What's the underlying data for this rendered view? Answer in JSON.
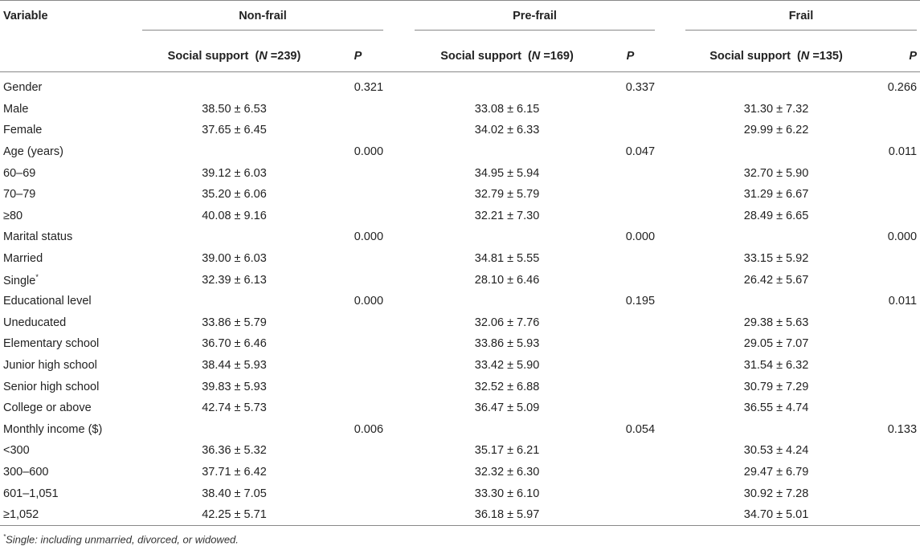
{
  "header": {
    "variable": "Variable",
    "groups": [
      {
        "name": "Non-frail",
        "ss_label": "Social support",
        "n_label": "N",
        "n_value": "=239",
        "p_label": "P"
      },
      {
        "name": "Pre-frail",
        "ss_label": "Social support",
        "n_label": "N",
        "n_value": "=169",
        "p_label": "P"
      },
      {
        "name": "Frail",
        "ss_label": "Social support",
        "n_label": "N",
        "n_value": "=135",
        "p_label": "P"
      }
    ]
  },
  "rows": [
    {
      "label": "Gender",
      "v": [
        "",
        "0.321",
        "",
        "0.337",
        "",
        "0.266"
      ]
    },
    {
      "label": "Male",
      "v": [
        "38.50 ± 6.53",
        "",
        "33.08 ± 6.15",
        "",
        "31.30 ± 7.32",
        ""
      ]
    },
    {
      "label": "Female",
      "v": [
        "37.65 ± 6.45",
        "",
        "34.02 ± 6.33",
        "",
        "29.99 ± 6.22",
        ""
      ]
    },
    {
      "label": "Age (years)",
      "v": [
        "",
        "0.000",
        "",
        "0.047",
        "",
        "0.011"
      ]
    },
    {
      "label": "60–69",
      "v": [
        "39.12 ± 6.03",
        "",
        "34.95 ± 5.94",
        "",
        "32.70 ± 5.90",
        ""
      ]
    },
    {
      "label": "70–79",
      "v": [
        "35.20 ± 6.06",
        "",
        "32.79 ± 5.79",
        "",
        "31.29 ± 6.67",
        ""
      ]
    },
    {
      "label": "≥80",
      "v": [
        "40.08 ± 9.16",
        "",
        "32.21 ± 7.30",
        "",
        "28.49 ± 6.65",
        ""
      ]
    },
    {
      "label": "Marital status",
      "v": [
        "",
        "0.000",
        "",
        "0.000",
        "",
        "0.000"
      ]
    },
    {
      "label": "Married",
      "v": [
        "39.00 ± 6.03",
        "",
        "34.81 ± 5.55",
        "",
        "33.15 ± 5.92",
        ""
      ]
    },
    {
      "label": "Single",
      "sup": "*",
      "v": [
        "32.39 ± 6.13",
        "",
        "28.10 ± 6.46",
        "",
        "26.42 ± 5.67",
        ""
      ]
    },
    {
      "label": "Educational level",
      "v": [
        "",
        "0.000",
        "",
        "0.195",
        "",
        "0.011"
      ]
    },
    {
      "label": "Uneducated",
      "v": [
        "33.86 ± 5.79",
        "",
        "32.06 ± 7.76",
        "",
        "29.38 ± 5.63",
        ""
      ]
    },
    {
      "label": "Elementary school",
      "v": [
        "36.70 ± 6.46",
        "",
        "33.86 ± 5.93",
        "",
        "29.05 ± 7.07",
        ""
      ]
    },
    {
      "label": "Junior high school",
      "v": [
        "38.44 ± 5.93",
        "",
        "33.42 ± 5.90",
        "",
        "31.54 ± 6.32",
        ""
      ]
    },
    {
      "label": "Senior high school",
      "v": [
        "39.83 ± 5.93",
        "",
        "32.52 ± 6.88",
        "",
        "30.79 ± 7.29",
        ""
      ]
    },
    {
      "label": "College or above",
      "v": [
        "42.74 ± 5.73",
        "",
        "36.47 ± 5.09",
        "",
        "36.55 ± 4.74",
        ""
      ]
    },
    {
      "label": "Monthly income ($)",
      "v": [
        "",
        "0.006",
        "",
        "0.054",
        "",
        "0.133"
      ]
    },
    {
      "label": "<300",
      "v": [
        "36.36 ± 5.32",
        "",
        "35.17 ± 6.21",
        "",
        "30.53 ± 4.24",
        ""
      ]
    },
    {
      "label": "300–600",
      "v": [
        "37.71 ± 6.42",
        "",
        "32.32 ± 6.30",
        "",
        "29.47 ± 6.79",
        ""
      ]
    },
    {
      "label": "601–1,051",
      "v": [
        "38.40 ± 7.05",
        "",
        "33.30 ± 6.10",
        "",
        "30.92 ± 7.28",
        ""
      ]
    },
    {
      "label": "≥1,052",
      "v": [
        "42.25 ± 5.71",
        "",
        "36.18 ± 5.97",
        "",
        "34.70 ± 5.01",
        ""
      ]
    }
  ],
  "footnote": {
    "marker": "*",
    "text": "Single: including unmarried, divorced, or widowed."
  }
}
